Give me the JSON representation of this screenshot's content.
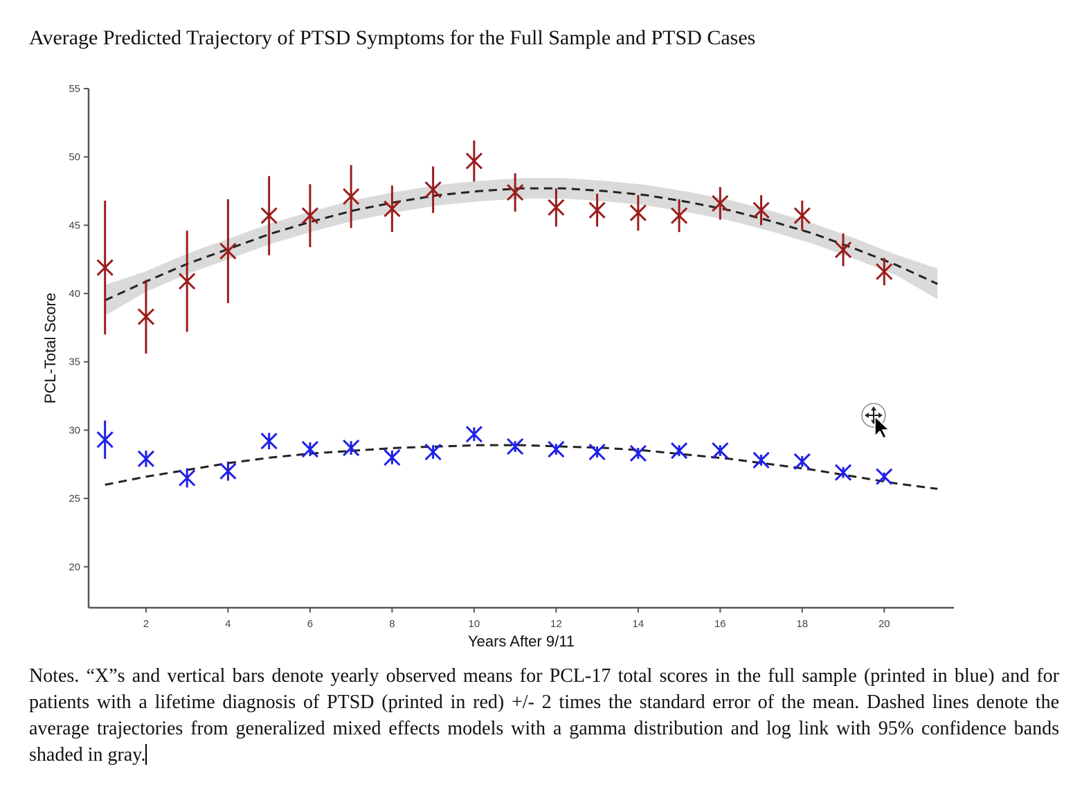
{
  "title": "Average Predicted Trajectory of PTSD Symptoms for the Full Sample and PTSD Cases",
  "notes": "Notes. “X”s and vertical bars denote yearly observed means for PCL-17 total scores in the full sample (printed in blue) and for patients with a lifetime diagnosis of PTSD (printed in red) +/- 2 times the standard error of the mean. Dashed lines denote the average trajectories from generalized mixed effects models with a gamma distribution and log link with 95% confidence bands shaded in gray.",
  "colors": {
    "ptsd": "#9b1c1c",
    "full": "#1f1fe8",
    "band": "#d4d4d4",
    "fit": "#222222",
    "axis": "#555555"
  },
  "cursor_icon": "move-cursor-icon",
  "chart_data": {
    "type": "scatter",
    "xlabel": "Years After 9/11",
    "ylabel": "PCL-Total Score",
    "xlim": [
      0.6,
      21.7
    ],
    "ylim": [
      17,
      55
    ],
    "xticks": [
      2,
      4,
      6,
      8,
      10,
      12,
      14,
      16,
      18,
      20
    ],
    "yticks": [
      20,
      25,
      30,
      35,
      40,
      45,
      50,
      55
    ],
    "grid": false,
    "series": [
      {
        "key": "ptsd",
        "x": [
          1,
          2,
          3,
          4,
          5,
          6,
          7,
          8,
          9,
          10,
          11,
          12,
          13,
          14,
          15,
          16,
          17,
          18,
          19,
          20
        ],
        "values": [
          41.9,
          38.3,
          40.9,
          43.1,
          45.7,
          45.7,
          47.1,
          46.2,
          47.6,
          49.7,
          47.4,
          46.3,
          46.1,
          45.9,
          45.7,
          46.6,
          46.1,
          45.7,
          43.2,
          41.6
        ],
        "err": [
          4.9,
          2.7,
          3.7,
          3.8,
          2.9,
          2.3,
          2.3,
          1.7,
          1.7,
          1.5,
          1.4,
          1.4,
          1.2,
          1.3,
          1.2,
          1.2,
          1.1,
          1.1,
          1.2,
          1.0
        ],
        "fit": [
          39.5,
          40.9,
          42.2,
          43.3,
          44.4,
          45.3,
          46.1,
          46.7,
          47.2,
          47.5,
          47.7,
          47.7,
          47.5,
          47.2,
          46.7,
          46.1,
          45.3,
          44.4,
          43.3,
          42.1,
          40.7
        ],
        "band_halfwidth": 0.75
      },
      {
        "key": "full",
        "x": [
          1,
          2,
          3,
          4,
          5,
          6,
          7,
          8,
          9,
          10,
          11,
          12,
          13,
          14,
          15,
          16,
          17,
          18,
          19,
          20
        ],
        "values": [
          29.3,
          27.9,
          26.5,
          27.0,
          29.2,
          28.6,
          28.7,
          28.0,
          28.4,
          29.7,
          28.8,
          28.6,
          28.4,
          28.3,
          28.5,
          28.5,
          27.8,
          27.7,
          26.9,
          26.6
        ],
        "err": [
          1.4,
          0.6,
          0.7,
          0.7,
          0.6,
          0.5,
          0.5,
          0.5,
          0.5,
          0.5,
          0.4,
          0.4,
          0.4,
          0.4,
          0.4,
          0.4,
          0.4,
          0.4,
          0.4,
          0.3
        ],
        "fit": [
          26.0,
          26.6,
          27.1,
          27.6,
          28.0,
          28.3,
          28.5,
          28.7,
          28.8,
          28.9,
          28.9,
          28.8,
          28.7,
          28.5,
          28.2,
          27.9,
          27.5,
          27.1,
          26.6,
          26.1,
          25.7
        ],
        "band_halfwidth": 0.15
      }
    ]
  }
}
